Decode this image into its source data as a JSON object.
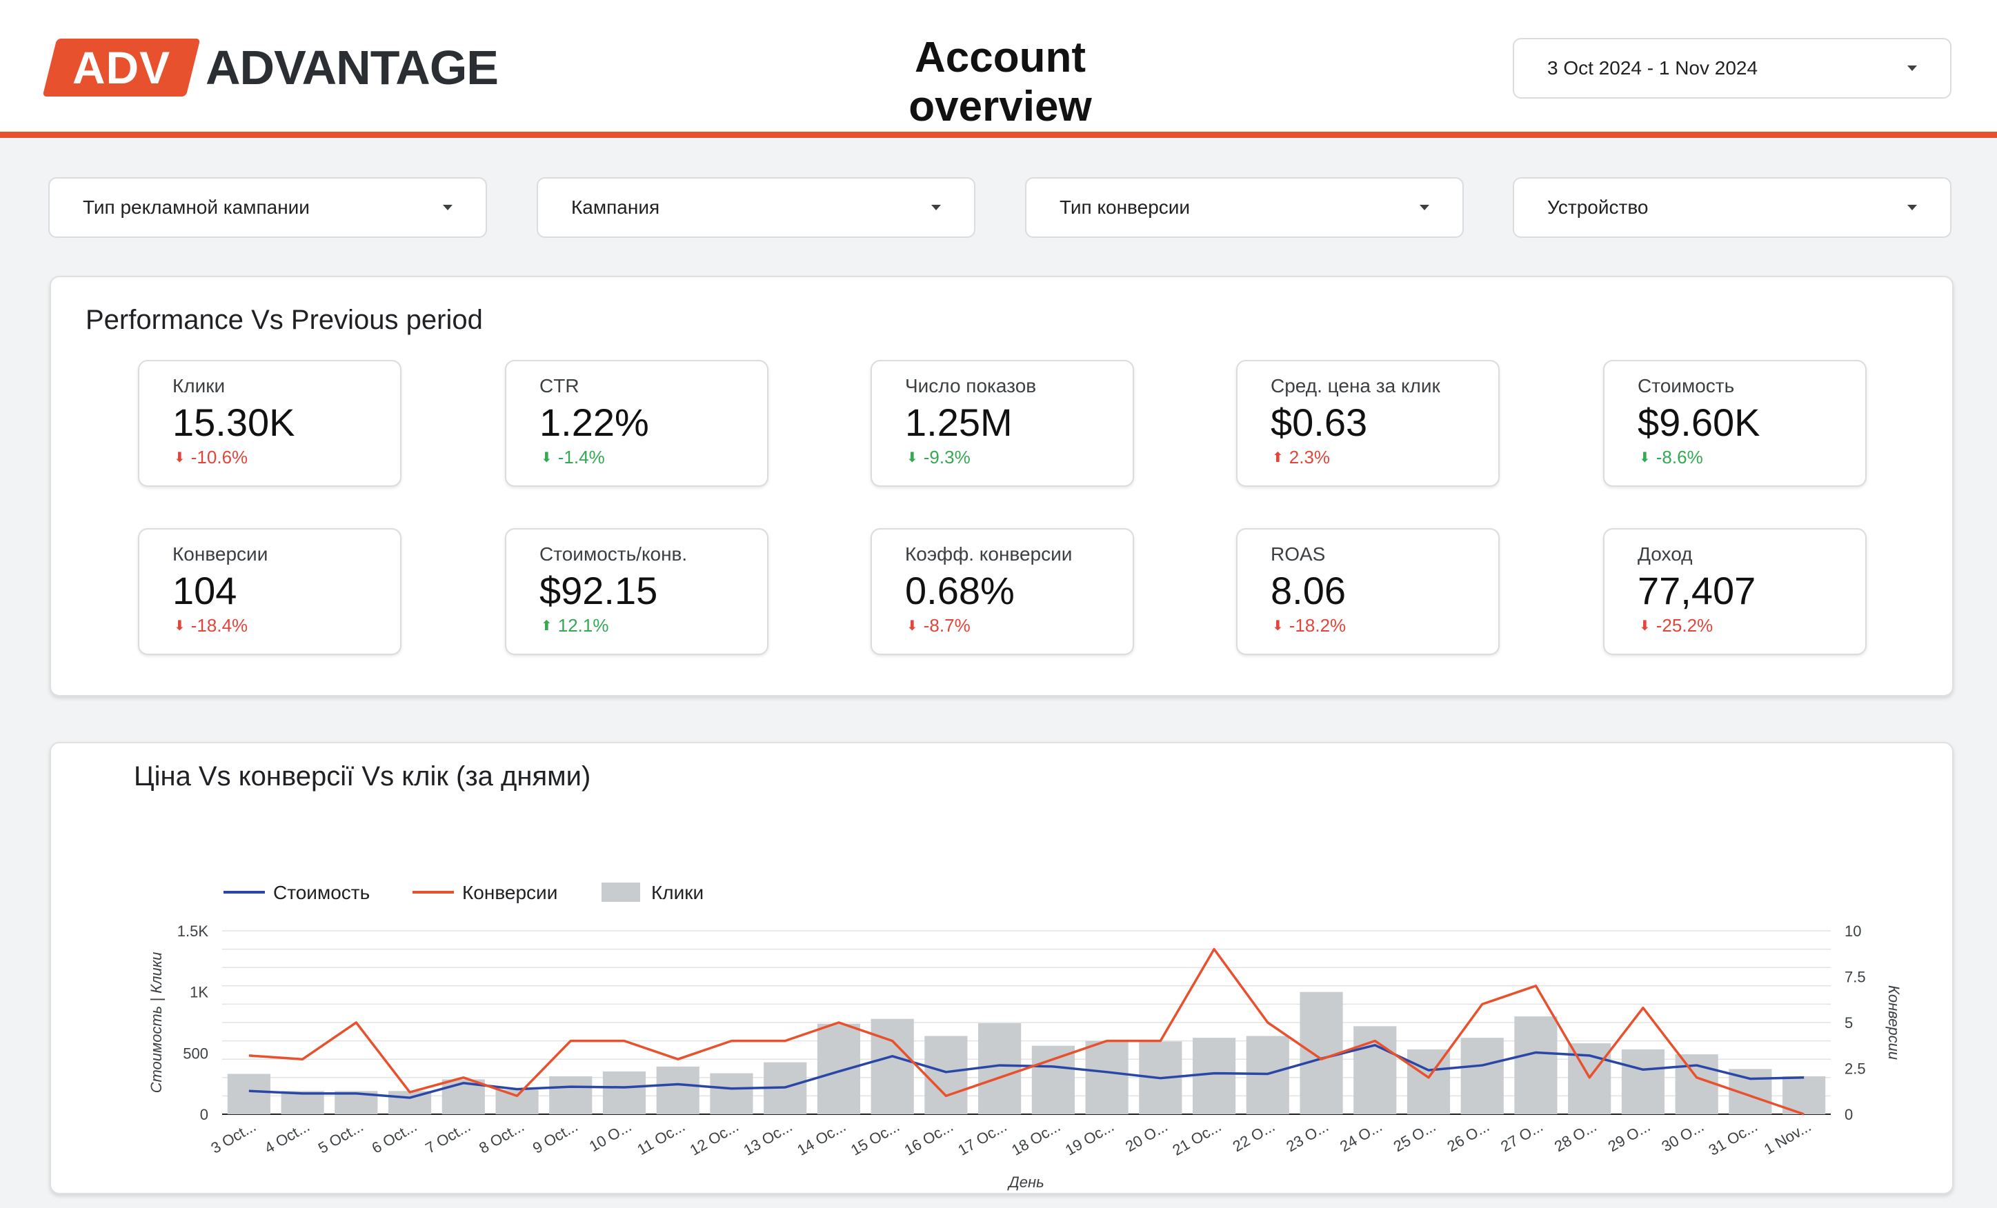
{
  "header": {
    "logo_badge": "ADV",
    "logo_word": "ADVANTAGE",
    "title": "Account overview",
    "date_range": "3 Oct 2024 - 1 Nov 2024",
    "accent_color": "#e8512d"
  },
  "filters": [
    {
      "label": "Тип рекламной кампании"
    },
    {
      "label": "Кампания"
    },
    {
      "label": "Тип конверсии"
    },
    {
      "label": "Устройство"
    }
  ],
  "performance": {
    "title": "Performance Vs Previous period",
    "kpis": [
      {
        "label": "Клики",
        "value": "15.30K",
        "delta": "-10.6%",
        "direction": "down",
        "status": "bad"
      },
      {
        "label": "CTR",
        "value": "1.22%",
        "delta": "-1.4%",
        "direction": "down",
        "status": "good"
      },
      {
        "label": "Число показов",
        "value": "1.25M",
        "delta": "-9.3%",
        "direction": "down",
        "status": "good"
      },
      {
        "label": "Сред. цена за клик",
        "value": "$0.63",
        "delta": "2.3%",
        "direction": "up",
        "status": "bad"
      },
      {
        "label": "Стоимость",
        "value": "$9.60K",
        "delta": "-8.6%",
        "direction": "down",
        "status": "good"
      },
      {
        "label": "Конверсии",
        "value": "104",
        "delta": "-18.4%",
        "direction": "down",
        "status": "bad"
      },
      {
        "label": "Стоимость/конв.",
        "value": "$92.15",
        "delta": "12.1%",
        "direction": "up",
        "status": "good"
      },
      {
        "label": "Коэфф. конверсии",
        "value": "0.68%",
        "delta": "-8.7%",
        "direction": "down",
        "status": "bad"
      },
      {
        "label": "ROAS",
        "value": "8.06",
        "delta": "-18.2%",
        "direction": "down",
        "status": "bad"
      },
      {
        "label": "Доход",
        "value": "77,407",
        "delta": "-25.2%",
        "direction": "down",
        "status": "bad"
      }
    ]
  },
  "trend": {
    "title": "Ціна Vs конверсії Vs клік (за днями)"
  },
  "chart_data": {
    "type": "bar",
    "xlabel": "День",
    "ylabel": "Стоимость | Клики",
    "y2label": "Конверсии",
    "ylim": [
      0,
      1500
    ],
    "y2lim": [
      0,
      10
    ],
    "yticks": [
      "0",
      "500",
      "1K",
      "1.5K"
    ],
    "y2ticks": [
      "0",
      "2.5",
      "5",
      "7.5",
      "10"
    ],
    "legend_position": "top-left",
    "categories": [
      "3 Oct...",
      "4 Oct...",
      "5 Oct...",
      "6 Oct...",
      "7 Oct...",
      "8 Oct...",
      "9 Oct...",
      "10 O...",
      "11 Oc...",
      "12 Oc...",
      "13 Oc...",
      "14 Oc...",
      "15 Oc...",
      "16 Oc...",
      "17 Oc...",
      "18 Oc...",
      "19 Oc...",
      "20 O...",
      "21 Oc...",
      "22 O...",
      "23 O...",
      "24 O...",
      "25 O...",
      "26 O...",
      "27 O...",
      "28 O...",
      "29 O...",
      "30 O...",
      "31 Oc...",
      "1 Nov..."
    ],
    "series": [
      {
        "name": "Стоимость",
        "kind": "line",
        "axis": "left",
        "color": "#2a47a8",
        "values": [
          190,
          170,
          170,
          135,
          255,
          205,
          225,
          220,
          245,
          210,
          220,
          350,
          475,
          345,
          400,
          390,
          345,
          295,
          335,
          330,
          455,
          565,
          360,
          400,
          505,
          480,
          365,
          400,
          290,
          300
        ]
      },
      {
        "name": "Конверсии",
        "kind": "line",
        "axis": "right",
        "color": "#e8512d",
        "values": [
          3.2,
          3.0,
          5.0,
          1.2,
          2.0,
          1.0,
          4.0,
          4.0,
          3.0,
          4.0,
          4.0,
          5.0,
          4.0,
          1.0,
          2.0,
          3.0,
          4.0,
          4.0,
          9.0,
          5.0,
          3.0,
          4.0,
          2.0,
          6.0,
          7.0,
          2.0,
          5.8,
          2.0,
          1.0,
          0.0
        ]
      },
      {
        "name": "Клики",
        "kind": "bar",
        "axis": "left",
        "color": "#c8cccf",
        "values": [
          330,
          190,
          190,
          190,
          285,
          200,
          310,
          350,
          390,
          335,
          425,
          740,
          780,
          640,
          745,
          560,
          600,
          595,
          625,
          640,
          1000,
          720,
          530,
          625,
          800,
          580,
          530,
          490,
          370,
          310
        ]
      }
    ]
  }
}
